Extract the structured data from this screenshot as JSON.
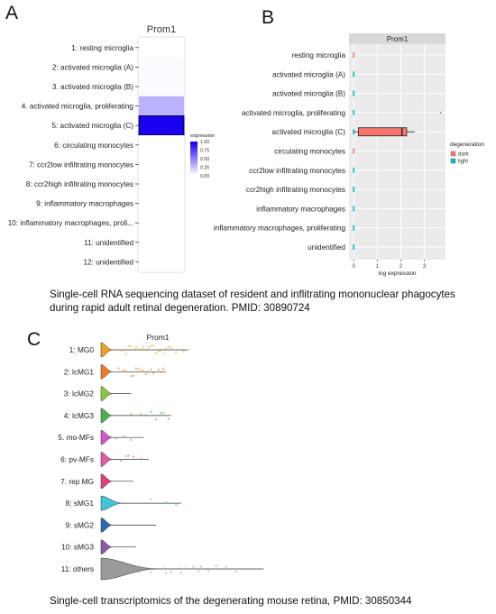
{
  "panels": {
    "a": {
      "letter": "A"
    },
    "b": {
      "letter": "B"
    },
    "c": {
      "letter": "C"
    }
  },
  "captions": {
    "top": "Single-cell RNA sequencing dataset of resident and inflitrating mononuclear phagocytes during rapid adult retinal degeneration. PMID: 30890724",
    "bottom": "Single-cell transcriptomics of the degenerating mouse retina, PMID: 30850344"
  },
  "chart_data": [
    {
      "type": "heatmap",
      "title": "Prom1",
      "categories": [
        "1: resting microglia",
        "2: activated microglia (A)",
        "3. activated microglia (B)",
        "4. activated microglia, proliferating",
        "5: activated microglia (C)",
        "6: circulating monocytes",
        "7: ccr2low infiltrating monocytes",
        "8: ccr2high infiltrating monocytes",
        "9: inflammatory macrophages",
        "10: inflammatory macrophages, proli...",
        "11: unidentified",
        "12: unidentified"
      ],
      "values": [
        0.0,
        0.02,
        0.02,
        0.3,
        1.0,
        0,
        0,
        0,
        0,
        0,
        0,
        0
      ],
      "legend": {
        "title": "expression",
        "ticks": [
          "1.00",
          "0.75",
          "0.50",
          "0.25",
          "0.00"
        ],
        "tick_values": [
          1.0,
          0.75,
          0.5,
          0.25,
          0.0
        ],
        "low_color": "#ffffff",
        "high_color": "#1a00f0"
      }
    },
    {
      "type": "box",
      "title": "Prom1",
      "categories": [
        "resting microglia",
        "activated microglia (A)",
        "activated microglia (B)",
        "activated microglia, proliferating",
        "activated microglia (C)",
        "circulating monocytes",
        "ccr2low infiltrating monocytes",
        "ccr2high infiltrating monocytes",
        "inflammatory macrophages",
        "inflammatory macrophages, proliferating",
        "unidentified"
      ],
      "xlabel": "log expression",
      "xlim": [
        -0.2,
        3.9
      ],
      "xticks": [
        0,
        1,
        2,
        3
      ],
      "legend_title": "degeneration",
      "series": [
        {
          "name": "dark",
          "color": "#f8766d"
        },
        {
          "name": "light",
          "color": "#00bfc4"
        }
      ],
      "boxes": [
        {
          "series": "dark",
          "category": "activated microglia (C)",
          "whisker_low": 0.0,
          "q1": 0.2,
          "median": 2.05,
          "q3": 2.25,
          "whisker_high": 2.6
        }
      ],
      "zero_marks": [
        {
          "category": "resting microglia",
          "series": "dark"
        },
        {
          "category": "activated microglia (A)",
          "series": "light"
        },
        {
          "category": "activated microglia (B)",
          "series": "light"
        },
        {
          "category": "activated microglia, proliferating",
          "series": "light"
        },
        {
          "category": "activated microglia (C)",
          "series": "light"
        },
        {
          "category": "circulating monocytes",
          "series": "dark"
        },
        {
          "category": "ccr2low infiltrating monocytes",
          "series": "light"
        },
        {
          "category": "ccr2high infiltrating monocytes",
          "series": "light"
        },
        {
          "category": "inflammatory macrophages",
          "series": "light"
        },
        {
          "category": "inflammatory macrophages, proliferating",
          "series": "light"
        },
        {
          "category": "unidentified",
          "series": "light"
        }
      ],
      "outliers": [
        {
          "category": "activated microglia, proliferating",
          "x": 3.7
        }
      ],
      "grid": true
    },
    {
      "type": "violin",
      "title": "Prom1",
      "categories": [
        "1: MG0",
        "2: lcMG1",
        "3: lcMG2",
        "4: lcMG3",
        "5. mo-MFs",
        "6: pv-MFs",
        "7. rep MG",
        "8: sMG1",
        "9: sMG2",
        "10: sMG3",
        "11: others"
      ],
      "colors": [
        "#f0a020",
        "#f07a20",
        "#8cc63f",
        "#4cae4c",
        "#d455c8",
        "#e05aa8",
        "#e0407a",
        "#40c4d8",
        "#2a6bb0",
        "#8e5aa8",
        "#9a9a9a"
      ],
      "max_value": [
        3.5,
        2.6,
        1.2,
        2.8,
        1.7,
        1.9,
        1.3,
        3.2,
        2.2,
        1.4,
        6.5
      ],
      "xlim": [
        0,
        6.6
      ],
      "points": [
        [
          0.6,
          0.9,
          1.2,
          1.4,
          1.6,
          1.8,
          2.0,
          2.2,
          2.4,
          2.6,
          2.8,
          3.0,
          3.3,
          1.1,
          1.5,
          1.9,
          2.3,
          2.7,
          0.8,
          1.3,
          1.7,
          2.1,
          2.5,
          1.0
        ],
        [
          0.7,
          1.0,
          1.3,
          1.5,
          1.7,
          1.9,
          2.1,
          2.3,
          2.5,
          1.2,
          1.6,
          2.0,
          2.4,
          0.9,
          1.4,
          1.8
        ],
        [],
        [
          1.2,
          1.6,
          2.0,
          2.2,
          2.5,
          2.7,
          1.8,
          2.4
        ],
        [
          0.6,
          0.9,
          1.2
        ],
        [
          0.8,
          1.0,
          1.3,
          1.6,
          1.1
        ],
        [],
        [
          2.0,
          2.6,
          3.0
        ],
        [],
        [],
        [
          1.0,
          1.3,
          1.6,
          1.9,
          2.2,
          2.5,
          2.8,
          3.1,
          3.4,
          3.7,
          4.0,
          4.3,
          4.6,
          5.0,
          5.4,
          2.0,
          2.6,
          3.2,
          1.5,
          3.9
        ]
      ]
    }
  ]
}
